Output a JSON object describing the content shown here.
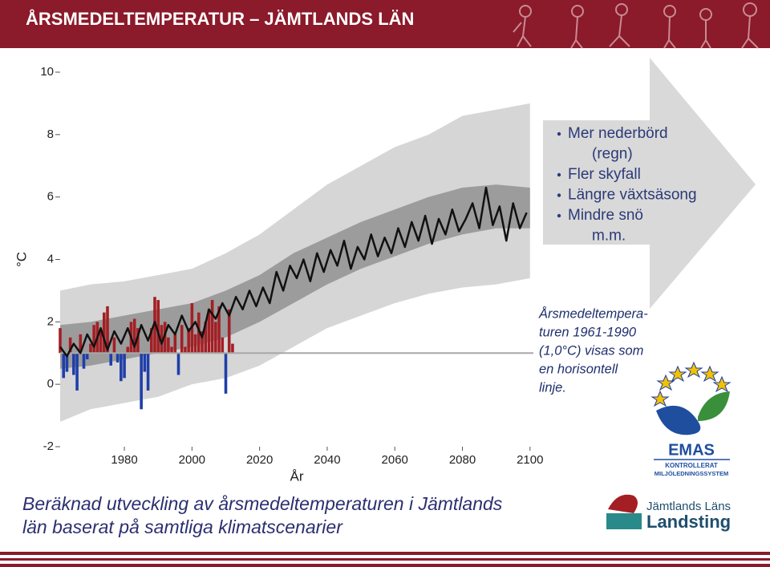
{
  "header": {
    "title": "ÅRSMEDELTEMPERATUR – JÄMTLANDS LÄN"
  },
  "bullets": [
    [
      "Mer nederbörd",
      "(regn)"
    ],
    [
      "Fler skyfall"
    ],
    [
      "Längre växtsäsong"
    ],
    [
      "Mindre snö",
      "m.m."
    ]
  ],
  "note": [
    "Årsmedeltempera-",
    "turen 1961-1990",
    "(1,0°C) visas som",
    "en horisontell",
    "linje."
  ],
  "caption": [
    "Beräknad utveckling av årsmedeltemperaturen i Jämtlands",
    "län baserat på samtliga klimatscenarier"
  ],
  "logos": {
    "emas": [
      "EMAS",
      "KONTROLLERAT",
      "MILJÖLEDNINGSSYSTEM"
    ],
    "landsting": [
      "Jämtlands Läns",
      "Landsting"
    ]
  },
  "chart_data": {
    "type": "climate-projection",
    "xlabel": "År",
    "ylabel": "°C",
    "xlim": [
      1961,
      2101
    ],
    "ylim": [
      -2,
      10
    ],
    "xticks": [
      1980,
      2000,
      2020,
      2040,
      2060,
      2080,
      2100
    ],
    "yticks": [
      -2,
      0,
      2,
      4,
      6,
      8,
      10
    ],
    "baseline": 1,
    "baseline_color": "#a8a8a8",
    "above_color": "#a31f24",
    "below_color": "#1f3ea8",
    "line_color": "#111111",
    "outer_color": "#d6d6d6",
    "inner_color": "#9c9c9c",
    "observed": {
      "x": [
        1961,
        1962,
        1963,
        1964,
        1965,
        1966,
        1967,
        1968,
        1969,
        1970,
        1971,
        1972,
        1973,
        1974,
        1975,
        1976,
        1977,
        1978,
        1979,
        1980,
        1981,
        1982,
        1983,
        1984,
        1985,
        1986,
        1987,
        1988,
        1989,
        1990,
        1991,
        1992,
        1993,
        1994,
        1995,
        1996,
        1997,
        1998,
        1999,
        2000,
        2001,
        2002,
        2003,
        2004,
        2005,
        2006,
        2007,
        2008,
        2009,
        2010,
        2011,
        2012
      ],
      "values": [
        1.8,
        0.2,
        0.4,
        1.5,
        0.3,
        -0.2,
        1.6,
        0.5,
        0.8,
        1.3,
        1.9,
        2.0,
        1.7,
        2.3,
        2.5,
        0.6,
        1.5,
        0.7,
        0.1,
        0.2,
        1.2,
        2.0,
        2.1,
        1.8,
        -0.8,
        0.4,
        -0.2,
        1.8,
        2.8,
        2.7,
        1.9,
        2.0,
        1.5,
        1.2,
        1.6,
        0.3,
        1.9,
        1.2,
        1.8,
        2.6,
        1.6,
        2.3,
        1.7,
        2.0,
        2.4,
        2.7,
        2.0,
        2.5,
        1.5,
        -0.3,
        2.4,
        1.3
      ]
    },
    "median": {
      "x": [
        1961,
        1963,
        1965,
        1967,
        1969,
        1971,
        1973,
        1975,
        1977,
        1979,
        1981,
        1983,
        1985,
        1987,
        1989,
        1991,
        1993,
        1995,
        1997,
        1999,
        2001,
        2003,
        2005,
        2007,
        2009,
        2011,
        2013,
        2015,
        2017,
        2019,
        2021,
        2023,
        2025,
        2027,
        2029,
        2031,
        2033,
        2035,
        2037,
        2039,
        2041,
        2043,
        2045,
        2047,
        2049,
        2051,
        2053,
        2055,
        2057,
        2059,
        2061,
        2063,
        2065,
        2067,
        2069,
        2071,
        2073,
        2075,
        2077,
        2079,
        2081,
        2083,
        2085,
        2087,
        2089,
        2091,
        2093,
        2095,
        2097,
        2099
      ],
      "values": [
        1.2,
        0.9,
        1.3,
        1.0,
        1.6,
        1.2,
        1.8,
        1.1,
        1.7,
        1.3,
        1.8,
        1.2,
        1.9,
        1.4,
        2.0,
        1.3,
        1.9,
        1.6,
        2.2,
        1.7,
        2.0,
        1.5,
        2.4,
        2.1,
        2.6,
        2.2,
        2.8,
        2.4,
        3.0,
        2.5,
        3.1,
        2.6,
        3.6,
        3.0,
        3.8,
        3.4,
        4.0,
        3.3,
        4.2,
        3.6,
        4.3,
        3.8,
        4.6,
        3.7,
        4.4,
        4.0,
        4.8,
        4.1,
        4.7,
        4.2,
        5.0,
        4.4,
        5.2,
        4.6,
        5.4,
        4.5,
        5.3,
        4.8,
        5.6,
        4.9,
        5.3,
        5.8,
        5.0,
        6.3,
        5.1,
        5.7,
        4.6,
        5.8,
        5.0,
        5.5
      ]
    },
    "bands": {
      "x": [
        1961,
        1970,
        1980,
        1990,
        2000,
        2010,
        2020,
        2030,
        2040,
        2050,
        2060,
        2070,
        2080,
        2090,
        2100
      ],
      "outer_lower": [
        -1.2,
        -0.8,
        -0.6,
        -0.4,
        0,
        0.2,
        0.6,
        1.2,
        1.8,
        2.2,
        2.6,
        2.9,
        3.1,
        3.2,
        3.4
      ],
      "outer_upper": [
        3.0,
        3.2,
        3.3,
        3.5,
        3.7,
        4.2,
        4.8,
        5.6,
        6.4,
        7.0,
        7.6,
        8.0,
        8.6,
        8.8,
        9.0
      ],
      "inner_lower": [
        0.5,
        0.6,
        0.8,
        1.0,
        1.2,
        1.5,
        2.0,
        2.6,
        3.2,
        3.7,
        4.1,
        4.5,
        4.8,
        5.0,
        5.0
      ],
      "inner_upper": [
        1.9,
        2.0,
        2.2,
        2.4,
        2.6,
        3.0,
        3.5,
        4.2,
        4.7,
        5.2,
        5.6,
        6.0,
        6.3,
        6.4,
        6.3
      ]
    }
  }
}
